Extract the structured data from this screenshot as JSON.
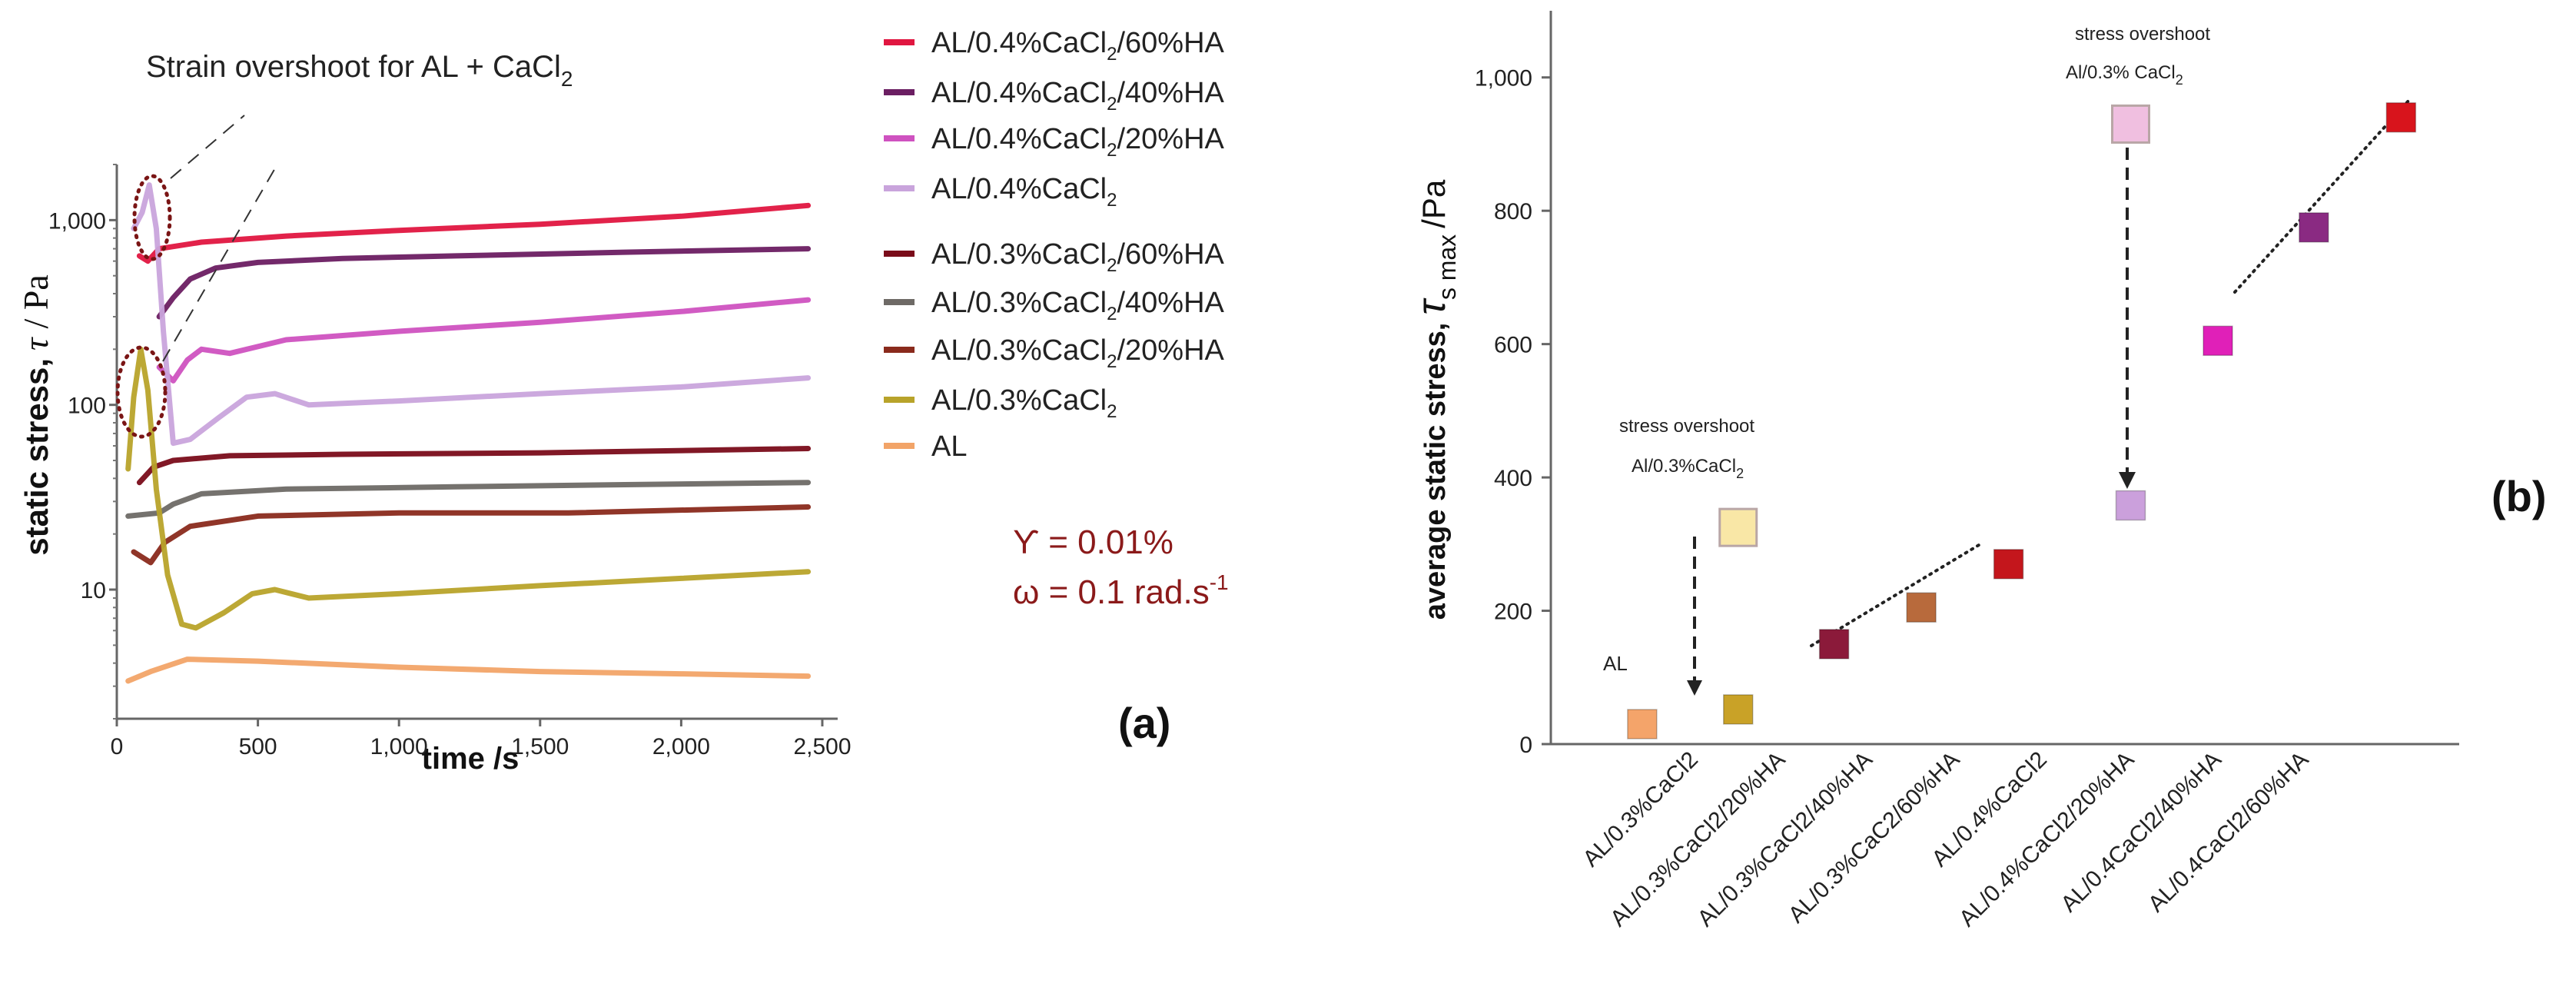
{
  "chart_data": [
    {
      "type": "line",
      "panel_label": "(a)",
      "title": "Strain overshoot for AL + CaCl",
      "title_subscript": "2",
      "xlabel": "time /s",
      "ylabel": "static stress,",
      "ylabel_symbol": "τ",
      "ylabel_unit": "/ Pa",
      "yscale": "log",
      "xlim": [
        0,
        2500
      ],
      "ylim": [
        2,
        2000
      ],
      "xticks": [
        {
          "value": 0,
          "label": "0"
        },
        {
          "value": 500,
          "label": "500"
        },
        {
          "value": 1000,
          "label": "1,000"
        },
        {
          "value": 1500,
          "label": "1,500"
        },
        {
          "value": 2000,
          "label": "2,000"
        },
        {
          "value": 2500,
          "label": "2,500"
        }
      ],
      "yticks": [
        {
          "value": 10,
          "label": "10"
        },
        {
          "value": 100,
          "label": "100"
        },
        {
          "value": 1000,
          "label": "1,000"
        }
      ],
      "annotation": {
        "line1": "ϒ = 0.01%",
        "line2": "ω = 0.1 rad.s",
        "line2_superscript": "-1",
        "color": "#8b1a1a"
      },
      "series": [
        {
          "name": "AL/0.4%CaCl2/60%HA",
          "legend": "AL/0.4%CaCl",
          "legend_sub": "2",
          "legend_suffix": "/60%HA",
          "color": "#e01640",
          "points": [
            [
              80,
              640
            ],
            [
              110,
              600
            ],
            [
              150,
              700
            ],
            [
              300,
              760
            ],
            [
              600,
              820
            ],
            [
              1000,
              880
            ],
            [
              1500,
              950
            ],
            [
              2000,
              1050
            ],
            [
              2450,
              1200
            ]
          ]
        },
        {
          "name": "AL/0.4%CaCl2/40%HA",
          "legend": "AL/0.4%CaCl",
          "legend_sub": "2",
          "legend_suffix": "/40%HA",
          "color": "#6b1e62",
          "points": [
            [
              150,
              300
            ],
            [
              200,
              380
            ],
            [
              260,
              480
            ],
            [
              350,
              550
            ],
            [
              500,
              590
            ],
            [
              800,
              620
            ],
            [
              1200,
              640
            ],
            [
              1800,
              670
            ],
            [
              2450,
              700
            ]
          ]
        },
        {
          "name": "AL/0.4%CaCl2/20%HA",
          "legend": "AL/0.4%CaCl",
          "legend_sub": "2",
          "legend_suffix": "/20%HA",
          "color": "#cf52c0",
          "points": [
            [
              150,
              160
            ],
            [
              200,
              135
            ],
            [
              250,
              175
            ],
            [
              300,
              200
            ],
            [
              400,
              190
            ],
            [
              600,
              225
            ],
            [
              1000,
              250
            ],
            [
              1500,
              280
            ],
            [
              2000,
              320
            ],
            [
              2450,
              370
            ]
          ]
        },
        {
          "name": "AL/0.4%CaCl2",
          "legend": "AL/0.4%CaCl",
          "legend_sub": "2",
          "legend_suffix": "",
          "color": "#c9a4dc",
          "points": [
            [
              60,
              900
            ],
            [
              90,
              1100
            ],
            [
              115,
              1550
            ],
            [
              140,
              900
            ],
            [
              165,
              250
            ],
            [
              200,
              62
            ],
            [
              260,
              65
            ],
            [
              360,
              85
            ],
            [
              460,
              110
            ],
            [
              560,
              115
            ],
            [
              680,
              100
            ],
            [
              1000,
              105
            ],
            [
              1500,
              115
            ],
            [
              2000,
              125
            ],
            [
              2450,
              140
            ]
          ]
        },
        {
          "name": "AL/0.3%CaCl2/60%HA",
          "legend": "AL/0.3%CaCl",
          "legend_sub": "2",
          "legend_suffix": "/60%HA",
          "color": "#7a0c1a",
          "points": [
            [
              80,
              38
            ],
            [
              130,
              46
            ],
            [
              200,
              50
            ],
            [
              400,
              53
            ],
            [
              800,
              54
            ],
            [
              1500,
              55
            ],
            [
              2450,
              58
            ]
          ]
        },
        {
          "name": "AL/0.3%CaCl2/40%HA",
          "legend": "AL/0.3%CaCl",
          "legend_sub": "2",
          "legend_suffix": "/40%HA",
          "color": "#6e6a66",
          "points": [
            [
              40,
              25
            ],
            [
              150,
              26
            ],
            [
              200,
              29
            ],
            [
              300,
              33
            ],
            [
              600,
              35
            ],
            [
              1200,
              36
            ],
            [
              1800,
              37
            ],
            [
              2450,
              38
            ]
          ]
        },
        {
          "name": "AL/0.3%CaCl2/20%HA",
          "legend": "AL/0.3%CaCl",
          "legend_sub": "2",
          "legend_suffix": "/20%HA",
          "color": "#8a2a1c",
          "points": [
            [
              60,
              16
            ],
            [
              120,
              14
            ],
            [
              170,
              18
            ],
            [
              260,
              22
            ],
            [
              500,
              25
            ],
            [
              1000,
              26
            ],
            [
              1600,
              26
            ],
            [
              2450,
              28
            ]
          ]
        },
        {
          "name": "AL/0.3%CaCl2",
          "legend": "AL/0.3%CaCl",
          "legend_sub": "2",
          "legend_suffix": "",
          "color": "#b8a32a",
          "points": [
            [
              40,
              45
            ],
            [
              60,
              110
            ],
            [
              85,
              200
            ],
            [
              110,
              120
            ],
            [
              140,
              35
            ],
            [
              180,
              12
            ],
            [
              230,
              6.5
            ],
            [
              280,
              6.2
            ],
            [
              380,
              7.5
            ],
            [
              480,
              9.5
            ],
            [
              560,
              10
            ],
            [
              680,
              9
            ],
            [
              1000,
              9.5
            ],
            [
              1500,
              10.5
            ],
            [
              2000,
              11.5
            ],
            [
              2450,
              12.5
            ]
          ]
        },
        {
          "name": "AL",
          "legend": "AL",
          "legend_sub": "",
          "legend_suffix": "",
          "color": "#f2a468",
          "points": [
            [
              40,
              3.2
            ],
            [
              120,
              3.6
            ],
            [
              250,
              4.2
            ],
            [
              500,
              4.1
            ],
            [
              1000,
              3.8
            ],
            [
              1500,
              3.6
            ],
            [
              2000,
              3.5
            ],
            [
              2450,
              3.4
            ]
          ]
        }
      ]
    },
    {
      "type": "scatter",
      "panel_label": "(b)",
      "ylabel": "average static stress,",
      "ylabel_symbol": "τ",
      "ylabel_subscript": "s max",
      "ylabel_unit": "/Pa",
      "ylim": [
        0,
        1100
      ],
      "yticks": [
        {
          "value": 0,
          "label": "0"
        },
        {
          "value": 200,
          "label": "200"
        },
        {
          "value": 400,
          "label": "400"
        },
        {
          "value": 600,
          "label": "600"
        },
        {
          "value": 800,
          "label": "800"
        },
        {
          "value": 1000,
          "label": "1,000"
        }
      ],
      "categories": [
        "AL/0.3%CaCl2",
        "AL/0.3%CaCl2/20%HA",
        "AL/0.3%CaCl2/40%HA",
        "AL/0.3%CaC2/60%HA",
        "AL/0.4%CaCl2",
        "AL/0.4%CaCl2/20%HA",
        "AL/0.4CaCl2/40%HA",
        "AL/0.4CaCl2/60%HA"
      ],
      "points": [
        {
          "label": "AL",
          "x": -0.6,
          "value": 30,
          "color": "#f4a46a"
        },
        {
          "label": "AL/0.3%CaCl2 overshoot",
          "x": 0.5,
          "value": 325,
          "color": "#f9e7a6",
          "faded": true
        },
        {
          "label": "AL/0.3%CaCl2",
          "x": 0.5,
          "value": 52,
          "color": "#c9a227"
        },
        {
          "label": "AL/0.3%CaCl2/20%HA",
          "x": 1.6,
          "value": 150,
          "color": "#8b1a3a"
        },
        {
          "label": "AL/0.3%CaCl2/40%HA",
          "x": 2.6,
          "value": 205,
          "color": "#b86a3c"
        },
        {
          "label": "AL/0.3%CaC2/60%HA",
          "x": 3.6,
          "value": 270,
          "color": "#c4161c"
        },
        {
          "label": "AL/0.4%CaCl2 overshoot",
          "x": 5.0,
          "value": 930,
          "color": "#f0bfe0",
          "faded": true
        },
        {
          "label": "AL/0.4%CaCl2",
          "x": 5.0,
          "value": 358,
          "color": "#cba0dc"
        },
        {
          "label": "AL/0.4%CaCl2/20%HA",
          "x": 6.0,
          "value": 605,
          "color": "#e020b8"
        },
        {
          "label": "AL/0.4CaCl2/40%HA",
          "x": 7.1,
          "value": 775,
          "color": "#8a2a82"
        },
        {
          "label": "AL/0.4CaCl2/60%HA",
          "x": 8.1,
          "value": 940,
          "color": "#d8141c"
        }
      ],
      "annotations": [
        {
          "text": "AL",
          "color": "#222222"
        },
        {
          "text_line1": "stress overshoot",
          "text_line2": "Al/0.3%CaCl",
          "sub": "2"
        },
        {
          "text_line1": "stress overshoot",
          "text_line2": "Al/0.3% CaCl",
          "sub": "2"
        }
      ]
    }
  ]
}
